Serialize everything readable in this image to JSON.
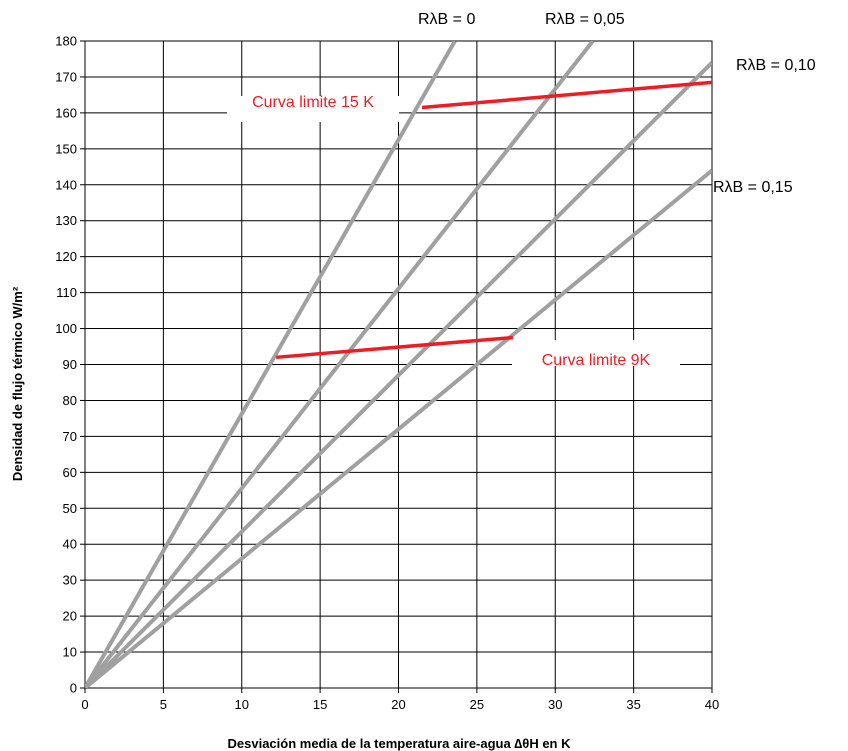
{
  "chart_data": {
    "type": "line",
    "xlabel": "Desviación media de la temperatura aire-agua ∆θH en K",
    "ylabel": "Densidad de flujo térmico W/m²",
    "xlim": [
      0,
      40
    ],
    "ylim": [
      0,
      180
    ],
    "x_ticks": [
      "0",
      "5",
      "10",
      "15",
      "20",
      "25",
      "30",
      "35",
      "40"
    ],
    "y_ticks": [
      "0",
      "10",
      "20",
      "30",
      "40",
      "50",
      "60",
      "70",
      "80",
      "90",
      "100",
      "110",
      "120",
      "130",
      "140",
      "150",
      "160",
      "170",
      "180"
    ],
    "grid": true,
    "series": [
      {
        "name": "RλB = 0",
        "color": "#a0a0a0",
        "points": [
          [
            0,
            0
          ],
          [
            23.6,
            180
          ]
        ]
      },
      {
        "name": "RλB = 0,05",
        "color": "#a0a0a0",
        "points": [
          [
            0,
            0
          ],
          [
            32.4,
            180
          ]
        ]
      },
      {
        "name": "RλB = 0,10",
        "color": "#a0a0a0",
        "points": [
          [
            0,
            0
          ],
          [
            40,
            174
          ]
        ]
      },
      {
        "name": "RλB = 0,15",
        "color": "#a0a0a0",
        "points": [
          [
            0,
            0
          ],
          [
            40,
            144
          ]
        ]
      }
    ],
    "limit_curves": [
      {
        "name": "Curva limite 15 K",
        "color": "#ee1c25",
        "points": [
          [
            21.5,
            161.5
          ],
          [
            40,
            168.5
          ]
        ]
      },
      {
        "name": "Curva limite 9K",
        "color": "#ee1c25",
        "points": [
          [
            12.2,
            92
          ],
          [
            27.3,
            97.5
          ]
        ]
      }
    ]
  }
}
